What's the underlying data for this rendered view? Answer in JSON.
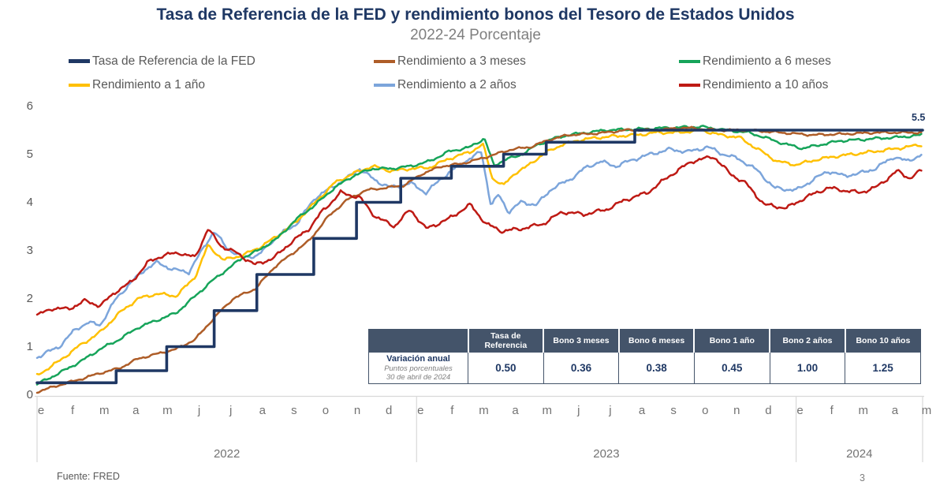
{
  "header": {
    "title": "Tasa de Referencia de la FED y rendimiento bonos del Tesoro de Estados Unidos",
    "subtitle": "2022-24 Porcentaje"
  },
  "footer": {
    "source": "Fuente: FRED",
    "page": "3"
  },
  "table": {
    "columns": [
      "",
      "Tasa de Referencia",
      "Bono  3 meses",
      "Bono 6 meses",
      "Bono 1 año",
      "Bono 2 años",
      "Bono 10 años"
    ],
    "row_label": {
      "title": "Variación anual",
      "sub1": "Puntos porcentuales",
      "sub2": "30 de abril de 2024"
    },
    "values": [
      "0.50",
      "0.36",
      "0.38",
      "0.45",
      "1.00",
      "1.25"
    ]
  },
  "chart_data": {
    "type": "line",
    "title": "Tasa de Referencia de la FED y rendimiento bonos del Tesoro de Estados Unidos",
    "subtitle": "2022-24 Porcentaje",
    "ylabel": "Porcentaje",
    "ylim": [
      0,
      6
    ],
    "yticks": [
      0,
      1,
      2,
      3,
      4,
      5,
      6
    ],
    "grid": false,
    "legend_position": "top",
    "end_label": "5.5",
    "x_unit": "months (0 = ene 2022 ... 28 = may 2024)",
    "x_axis": {
      "year_groups": [
        {
          "label": "2022",
          "months": [
            "e",
            "f",
            "m",
            "a",
            "m",
            "j",
            "j",
            "a",
            "s",
            "o",
            "n",
            "d"
          ]
        },
        {
          "label": "2023",
          "months": [
            "e",
            "f",
            "m",
            "a",
            "m",
            "j",
            "j",
            "a",
            "s",
            "o",
            "n",
            "d"
          ]
        },
        {
          "label": "2024",
          "months": [
            "e",
            "f",
            "m",
            "a",
            "m"
          ]
        }
      ]
    },
    "series": [
      {
        "name": "Tasa de Referencia de la FED",
        "color": "#1F3864",
        "step": true,
        "points": [
          [
            0,
            0.25
          ],
          [
            2.5,
            0.5
          ],
          [
            4.1,
            1.0
          ],
          [
            5.6,
            1.75
          ],
          [
            6.95,
            2.5
          ],
          [
            8.75,
            3.25
          ],
          [
            10.1,
            4.0
          ],
          [
            11.5,
            4.5
          ],
          [
            13.1,
            4.75
          ],
          [
            14.75,
            5.0
          ],
          [
            16.1,
            5.25
          ],
          [
            18.9,
            5.5
          ],
          [
            28,
            5.5
          ]
        ]
      },
      {
        "name": "Rendimiento a 3 meses",
        "color": "#AE5D28",
        "step": false,
        "points": [
          [
            0,
            0.06
          ],
          [
            0.7,
            0.2
          ],
          [
            1.4,
            0.33
          ],
          [
            2,
            0.45
          ],
          [
            2.6,
            0.55
          ],
          [
            3.2,
            0.75
          ],
          [
            3.8,
            0.85
          ],
          [
            4.4,
            0.95
          ],
          [
            5,
            1.15
          ],
          [
            5.6,
            1.6
          ],
          [
            6.2,
            2.0
          ],
          [
            6.9,
            2.2
          ],
          [
            7.5,
            2.65
          ],
          [
            8,
            2.9
          ],
          [
            8.6,
            3.2
          ],
          [
            9.2,
            3.7
          ],
          [
            9.8,
            4.05
          ],
          [
            10.4,
            4.25
          ],
          [
            11,
            4.3
          ],
          [
            11.6,
            4.35
          ],
          [
            12.2,
            4.6
          ],
          [
            12.8,
            4.75
          ],
          [
            13.4,
            4.8
          ],
          [
            14,
            4.9
          ],
          [
            14.5,
            5.0
          ],
          [
            15,
            5.1
          ],
          [
            15.6,
            5.15
          ],
          [
            16.2,
            5.3
          ],
          [
            16.8,
            5.4
          ],
          [
            17.4,
            5.42
          ],
          [
            18,
            5.45
          ],
          [
            18.6,
            5.5
          ],
          [
            19.5,
            5.5
          ],
          [
            20.5,
            5.55
          ],
          [
            21.5,
            5.5
          ],
          [
            22.5,
            5.5
          ],
          [
            23.5,
            5.45
          ],
          [
            24.5,
            5.4
          ],
          [
            25.5,
            5.42
          ],
          [
            26.5,
            5.45
          ],
          [
            27.3,
            5.45
          ],
          [
            28,
            5.45
          ]
        ]
      },
      {
        "name": "Rendimiento a 6 meses",
        "color": "#16A45A",
        "step": false,
        "points": [
          [
            0,
            0.22
          ],
          [
            0.7,
            0.45
          ],
          [
            1.4,
            0.7
          ],
          [
            2,
            0.95
          ],
          [
            2.6,
            1.15
          ],
          [
            3.2,
            1.4
          ],
          [
            3.8,
            1.55
          ],
          [
            4.4,
            1.7
          ],
          [
            5,
            2.05
          ],
          [
            5.5,
            2.35
          ],
          [
            6,
            2.6
          ],
          [
            6.5,
            2.85
          ],
          [
            7,
            3.0
          ],
          [
            7.6,
            3.25
          ],
          [
            8.2,
            3.65
          ],
          [
            8.8,
            3.95
          ],
          [
            9.4,
            4.3
          ],
          [
            10,
            4.55
          ],
          [
            10.6,
            4.7
          ],
          [
            11.2,
            4.7
          ],
          [
            11.8,
            4.75
          ],
          [
            12.4,
            4.85
          ],
          [
            13,
            5.05
          ],
          [
            13.7,
            5.15
          ],
          [
            14.15,
            5.33
          ],
          [
            14.45,
            4.75
          ],
          [
            14.8,
            4.9
          ],
          [
            15.2,
            4.95
          ],
          [
            15.7,
            5.15
          ],
          [
            16.2,
            5.3
          ],
          [
            16.8,
            5.4
          ],
          [
            17.4,
            5.45
          ],
          [
            18,
            5.5
          ],
          [
            19,
            5.52
          ],
          [
            20,
            5.55
          ],
          [
            21,
            5.57
          ],
          [
            21.8,
            5.5
          ],
          [
            22.5,
            5.45
          ],
          [
            23,
            5.35
          ],
          [
            23.6,
            5.22
          ],
          [
            24.2,
            5.12
          ],
          [
            24.8,
            5.2
          ],
          [
            25.4,
            5.28
          ],
          [
            26,
            5.3
          ],
          [
            26.6,
            5.33
          ],
          [
            27.2,
            5.35
          ],
          [
            28,
            5.4
          ]
        ]
      },
      {
        "name": "Rendimiento a 1 año",
        "color": "#FFC000",
        "step": false,
        "points": [
          [
            0,
            0.4
          ],
          [
            0.7,
            0.7
          ],
          [
            1.3,
            1.0
          ],
          [
            2,
            1.3
          ],
          [
            2.6,
            1.7
          ],
          [
            3.2,
            2.0
          ],
          [
            3.8,
            2.1
          ],
          [
            4.4,
            2.05
          ],
          [
            5,
            2.45
          ],
          [
            5.4,
            3.1
          ],
          [
            5.9,
            2.8
          ],
          [
            6.5,
            2.9
          ],
          [
            7,
            3.05
          ],
          [
            7.6,
            3.3
          ],
          [
            8.2,
            3.6
          ],
          [
            8.8,
            4.0
          ],
          [
            9.4,
            4.4
          ],
          [
            10,
            4.6
          ],
          [
            10.6,
            4.75
          ],
          [
            11.2,
            4.65
          ],
          [
            11.8,
            4.7
          ],
          [
            12.4,
            4.72
          ],
          [
            13,
            4.9
          ],
          [
            13.7,
            5.05
          ],
          [
            14.1,
            5.2
          ],
          [
            14.4,
            4.5
          ],
          [
            14.75,
            4.35
          ],
          [
            15.1,
            4.6
          ],
          [
            15.5,
            4.75
          ],
          [
            16,
            5.0
          ],
          [
            16.6,
            5.2
          ],
          [
            17.2,
            5.3
          ],
          [
            17.8,
            5.35
          ],
          [
            18.4,
            5.38
          ],
          [
            19,
            5.4
          ],
          [
            19.6,
            5.45
          ],
          [
            20.3,
            5.45
          ],
          [
            21,
            5.5
          ],
          [
            21.6,
            5.4
          ],
          [
            22.2,
            5.35
          ],
          [
            22.8,
            5.1
          ],
          [
            23.4,
            4.85
          ],
          [
            24,
            4.78
          ],
          [
            24.6,
            4.88
          ],
          [
            25.2,
            4.95
          ],
          [
            25.8,
            5.0
          ],
          [
            26.4,
            5.05
          ],
          [
            27,
            5.1
          ],
          [
            27.5,
            5.15
          ],
          [
            28,
            5.2
          ]
        ]
      },
      {
        "name": "Rendimiento a 2 años",
        "color": "#7CA5DB",
        "step": false,
        "points": [
          [
            0,
            0.78
          ],
          [
            0.7,
            1.0
          ],
          [
            1.2,
            1.35
          ],
          [
            1.6,
            1.5
          ],
          [
            2,
            1.45
          ],
          [
            2.5,
            2.0
          ],
          [
            3,
            2.35
          ],
          [
            3.4,
            2.6
          ],
          [
            3.8,
            2.75
          ],
          [
            4.3,
            2.6
          ],
          [
            4.8,
            2.55
          ],
          [
            5.4,
            3.2
          ],
          [
            5.6,
            3.4
          ],
          [
            6,
            3.05
          ],
          [
            6.5,
            2.85
          ],
          [
            7,
            2.9
          ],
          [
            7.6,
            3.3
          ],
          [
            8.2,
            3.55
          ],
          [
            8.8,
            4.1
          ],
          [
            9.3,
            4.3
          ],
          [
            9.8,
            4.5
          ],
          [
            10.2,
            4.7
          ],
          [
            10.7,
            4.45
          ],
          [
            11.2,
            4.3
          ],
          [
            11.8,
            4.4
          ],
          [
            12.3,
            4.2
          ],
          [
            12.8,
            4.5
          ],
          [
            13.4,
            4.8
          ],
          [
            14.05,
            5.05
          ],
          [
            14.35,
            3.95
          ],
          [
            14.6,
            4.15
          ],
          [
            14.9,
            3.8
          ],
          [
            15.3,
            4.0
          ],
          [
            15.8,
            3.95
          ],
          [
            16.3,
            4.3
          ],
          [
            16.8,
            4.45
          ],
          [
            17.3,
            4.7
          ],
          [
            17.8,
            4.85
          ],
          [
            18.3,
            4.75
          ],
          [
            18.9,
            4.9
          ],
          [
            19.4,
            5.0
          ],
          [
            20,
            5.1
          ],
          [
            20.6,
            5.05
          ],
          [
            21.2,
            5.15
          ],
          [
            21.7,
            5.0
          ],
          [
            22.2,
            4.9
          ],
          [
            22.8,
            4.65
          ],
          [
            23.3,
            4.3
          ],
          [
            24,
            4.25
          ],
          [
            24.5,
            4.45
          ],
          [
            25,
            4.65
          ],
          [
            25.5,
            4.55
          ],
          [
            26,
            4.6
          ],
          [
            26.5,
            4.7
          ],
          [
            27.1,
            4.95
          ],
          [
            27.5,
            4.85
          ],
          [
            28,
            5.0
          ]
        ]
      },
      {
        "name": "Rendimiento a 10 años",
        "color": "#BE1A14",
        "step": false,
        "points": [
          [
            0,
            1.65
          ],
          [
            0.5,
            1.8
          ],
          [
            1,
            1.78
          ],
          [
            1.5,
            1.95
          ],
          [
            2,
            1.85
          ],
          [
            2.5,
            2.15
          ],
          [
            3,
            2.35
          ],
          [
            3.5,
            2.75
          ],
          [
            4,
            2.9
          ],
          [
            4.5,
            2.95
          ],
          [
            5,
            2.85
          ],
          [
            5.4,
            3.45
          ],
          [
            5.8,
            3.1
          ],
          [
            6.3,
            2.95
          ],
          [
            6.9,
            2.7
          ],
          [
            7.5,
            2.85
          ],
          [
            8,
            3.15
          ],
          [
            8.6,
            3.45
          ],
          [
            9,
            3.8
          ],
          [
            9.6,
            4.2
          ],
          [
            10.2,
            4.1
          ],
          [
            10.7,
            3.7
          ],
          [
            11.3,
            3.5
          ],
          [
            11.8,
            3.85
          ],
          [
            12.3,
            3.45
          ],
          [
            13,
            3.65
          ],
          [
            13.7,
            3.95
          ],
          [
            14.2,
            3.55
          ],
          [
            14.7,
            3.4
          ],
          [
            15.3,
            3.45
          ],
          [
            16,
            3.55
          ],
          [
            16.6,
            3.8
          ],
          [
            17.3,
            3.75
          ],
          [
            18,
            3.85
          ],
          [
            18.6,
            4.05
          ],
          [
            19.3,
            4.2
          ],
          [
            20,
            4.55
          ],
          [
            20.7,
            4.85
          ],
          [
            21.4,
            4.95
          ],
          [
            21.9,
            4.6
          ],
          [
            22.4,
            4.4
          ],
          [
            23,
            3.95
          ],
          [
            23.7,
            3.88
          ],
          [
            24.3,
            4.1
          ],
          [
            25,
            4.3
          ],
          [
            25.5,
            4.25
          ],
          [
            26,
            4.2
          ],
          [
            26.5,
            4.3
          ],
          [
            27.2,
            4.65
          ],
          [
            27.6,
            4.5
          ],
          [
            28,
            4.68
          ]
        ]
      }
    ]
  }
}
